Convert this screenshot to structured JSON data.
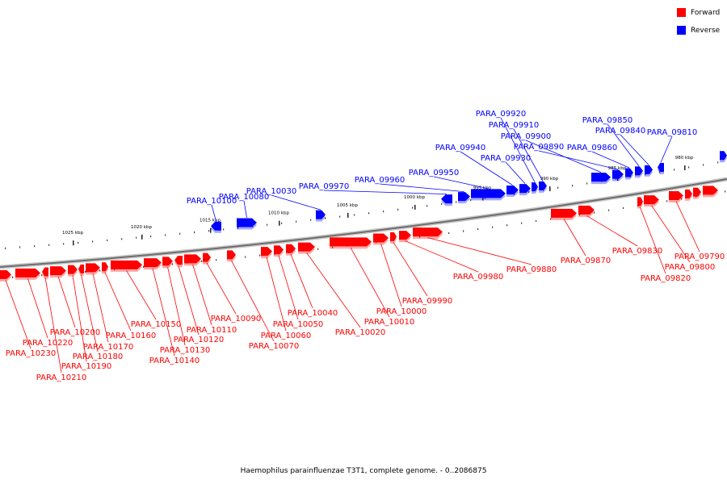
{
  "legend": {
    "forward_label": "Forward",
    "reverse_label": "Reverse",
    "forward_color": "#ff0000",
    "reverse_color": "#0000ff"
  },
  "caption": "Haemophilus parainfluenzae T3T1, complete genome. - 0..2086875",
  "scale_ticks": [
    "1025 kbp",
    "1020 kbp",
    "1015 kbp",
    "1010 kbp",
    "1005 kbp",
    "1000 kbp",
    "995 kbp",
    "990 kbp",
    "985 kbp",
    "980 kbp"
  ],
  "reverse_genes": [
    "PARA_10100",
    "PARA_10080",
    "PARA_10030",
    "PARA_09970",
    "PARA_09960",
    "PARA_09950",
    "PARA_09940",
    "PARA_09930",
    "PARA_09920",
    "PARA_09910",
    "PARA_09900",
    "PARA_09890",
    "PARA_09860",
    "PARA_09850",
    "PARA_09840",
    "PARA_09810"
  ],
  "forward_genes": [
    "PARA_10230",
    "PARA_10220",
    "PARA_10210",
    "PARA_10200",
    "PARA_10190",
    "PARA_10180",
    "PARA_10170",
    "PARA_10160",
    "PARA_10150",
    "PARA_10140",
    "PARA_10130",
    "PARA_10120",
    "PARA_10110",
    "PARA_10090",
    "PARA_10070",
    "PARA_10060",
    "PARA_10050",
    "PARA_10040",
    "PARA_10020",
    "PARA_10010",
    "PARA_10000",
    "PARA_09990",
    "PARA_09980",
    "PARA_09880",
    "PARA_09870",
    "PARA_09830",
    "PARA_09820",
    "PARA_09800",
    "PARA_09790"
  ]
}
